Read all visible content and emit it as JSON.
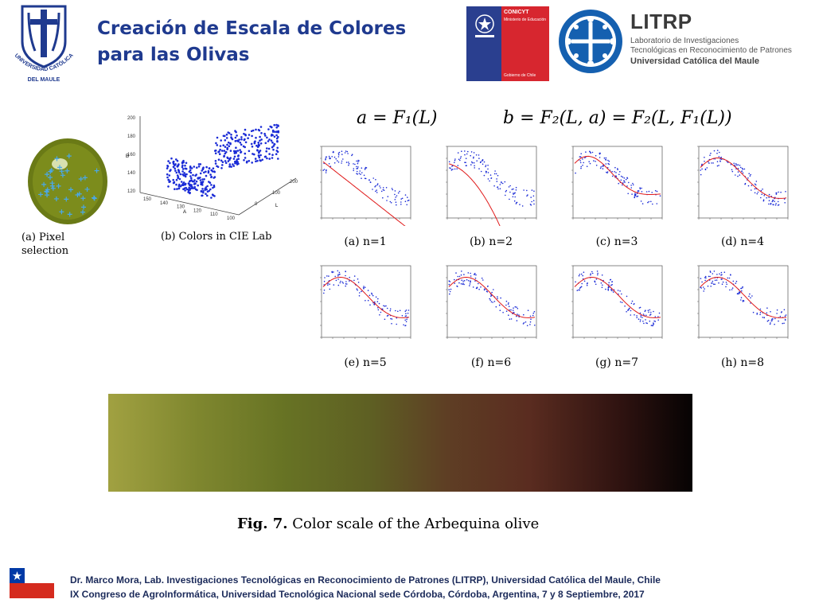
{
  "header": {
    "title": "Creación de Escala de Colores para las Olivas",
    "ucm_logo": {
      "top_text": "UNIVERSIDAD CATÓLICA",
      "bottom_text": "DEL MAULE"
    },
    "conicyt": {
      "name": "CONICYT",
      "ministry": "Ministerio de Educación",
      "government": "Gobierno de Chile"
    },
    "litrp": {
      "name": "LITRP",
      "line1": "Laboratorio de Investigaciones",
      "line2": "Tecnológicas en Reconocimiento de Patrones",
      "line3": "Universidad Católica del Maule"
    }
  },
  "figure": {
    "caption_a": "(a) Pixel selection",
    "caption_b": "(b) Colors in CIE Lab",
    "scatter_axes": {
      "y_ticks": [
        "200",
        "180",
        "160",
        "140",
        "120"
      ],
      "x_ticks": [
        "150",
        "140",
        "130",
        "120",
        "110",
        "100"
      ],
      "z_ticks": [
        "200",
        "100",
        "0"
      ],
      "x_label": "A",
      "y_label": "B",
      "z_label": "L"
    },
    "equation_a": "a = F₁(L)",
    "equation_b": "b = F₂(L, a) = F₂(L, F₁(L))",
    "plots": [
      {
        "caption": "(a) n=1"
      },
      {
        "caption": "(b) n=2"
      },
      {
        "caption": "(c) n=3"
      },
      {
        "caption": "(d) n=4"
      },
      {
        "caption": "(e) n=5"
      },
      {
        "caption": "(f) n=6"
      },
      {
        "caption": "(g) n=7"
      },
      {
        "caption": "(h) n=8"
      }
    ],
    "fig_label": "Fig. 7.",
    "fig_caption": "Color scale of the Arbequina olive"
  },
  "colors": {
    "title": "#1f3a8f",
    "fit_curve": "#e01a1a",
    "points": "#1a2bd6",
    "scale_start": "#a1a141",
    "scale_end": "#060303"
  },
  "footer": {
    "line1": "Dr. Marco Mora, Lab.  Investigaciones Tecnológicas en Reconocimiento de Patrones (LITRP), Universidad Católica del Maule, Chile",
    "line2": "IX Congreso de AgroInformática, Universidad Tecnológica Nacional sede Córdoba, Córdoba, Argentina, 7 y 8 Septiembre, 2017"
  }
}
